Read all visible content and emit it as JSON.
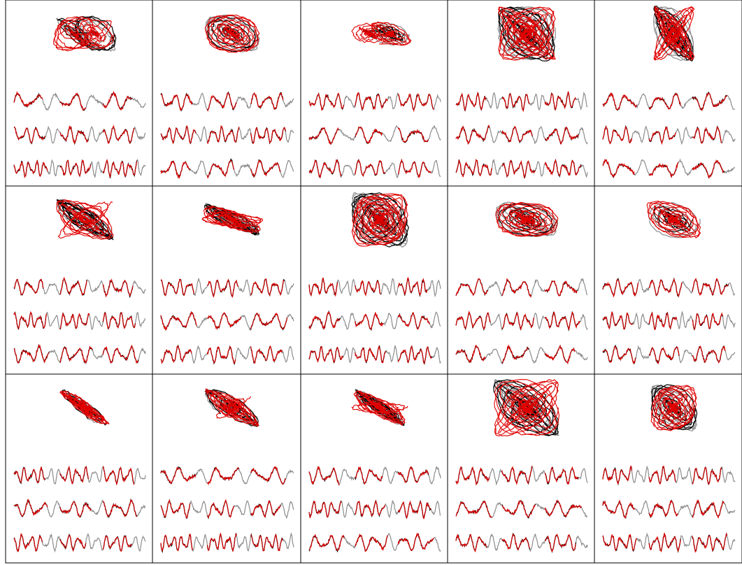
{
  "colors": {
    "truth": "#000000",
    "context": "#8c8c8c",
    "forecast": "#e00000",
    "frame": "#000000",
    "background": "#ffffff"
  },
  "chart_data": [
    {
      "type": "line",
      "panel": 1,
      "attractor": {
        "shape": "butterfly"
      },
      "series": [
        {
          "values": [],
          "kind": "truth"
        },
        {
          "values": [],
          "kind": "forecast"
        }
      ]
    },
    {
      "type": "line",
      "panel": 2,
      "attractor": {
        "shape": "spiral"
      }
    },
    {
      "type": "line",
      "panel": 3,
      "attractor": {
        "shape": "butterfly-flat"
      }
    },
    {
      "type": "line",
      "panel": 4,
      "attractor": {
        "shape": "dense"
      }
    },
    {
      "type": "line",
      "panel": 5,
      "attractor": {
        "shape": "tangle"
      }
    },
    {
      "type": "line",
      "panel": 6,
      "attractor": {
        "shape": "loop"
      }
    },
    {
      "type": "line",
      "panel": 7,
      "attractor": {
        "shape": "flat"
      }
    },
    {
      "type": "line",
      "panel": 8,
      "attractor": {
        "shape": "dense"
      }
    },
    {
      "type": "line",
      "panel": 9,
      "attractor": {
        "shape": "tangle-wide"
      }
    },
    {
      "type": "line",
      "panel": 10,
      "attractor": {
        "shape": "spiral-wide"
      }
    },
    {
      "type": "line",
      "panel": 11,
      "attractor": {
        "shape": "diagonal"
      }
    },
    {
      "type": "line",
      "panel": 12,
      "attractor": {
        "shape": "spiral-cone"
      }
    },
    {
      "type": "line",
      "panel": 13,
      "attractor": {
        "shape": "comet"
      }
    },
    {
      "type": "line",
      "panel": 14,
      "attractor": {
        "shape": "dense-wide"
      }
    },
    {
      "type": "line",
      "panel": 15,
      "attractor": {
        "shape": "ring"
      }
    }
  ]
}
